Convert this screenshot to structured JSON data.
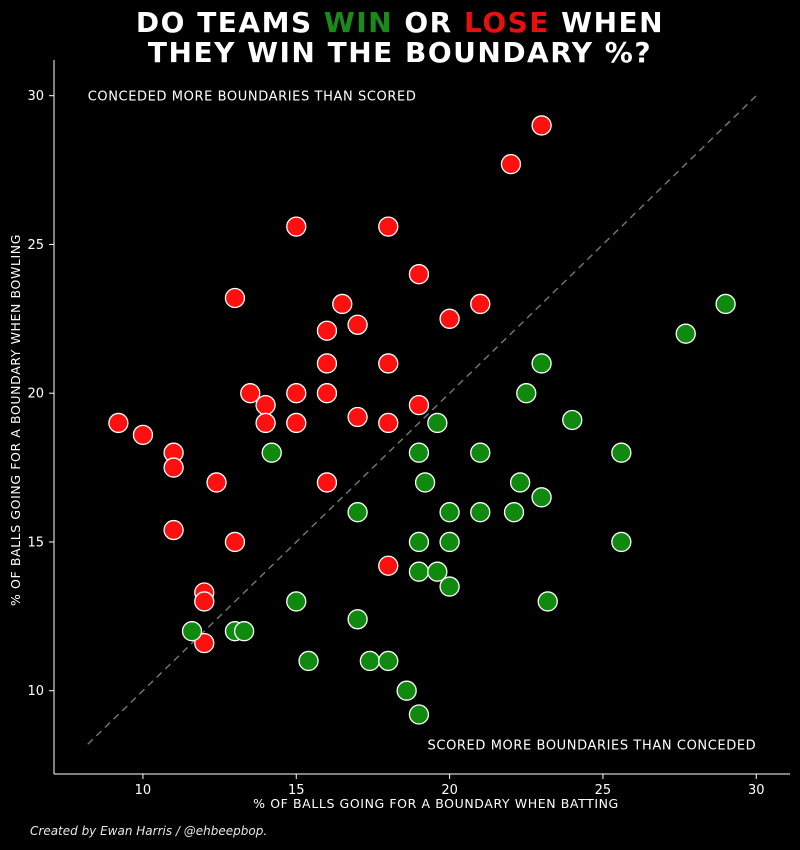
{
  "title": {
    "line1_a": "DO TEAMS ",
    "line1_win": "WIN",
    "line1_b": " OR ",
    "line1_lose": "LOSE",
    "line1_c": " WHEN",
    "line2": "THEY WIN THE BOUNDARY %?"
  },
  "credit": "Created by Ewan Harris / @ehbeepbop.",
  "colors": {
    "win": "#0f8a0f",
    "lose": "#ff1010",
    "background": "#000000",
    "diagonal": "#777777"
  },
  "chart_data": {
    "type": "scatter",
    "xlabel": "% OF BALLS GOING FOR A BOUNDARY WHEN BATTING",
    "ylabel": "% OF BALLS GOING FOR A BOUNDARY WHEN BOWLING",
    "xlim": [
      7.1,
      31.1
    ],
    "ylim": [
      7.2,
      31.2
    ],
    "xticks": [
      10,
      15,
      20,
      25,
      30
    ],
    "yticks": [
      10,
      15,
      20,
      25,
      30
    ],
    "grid": false,
    "annotations": [
      {
        "text": "CONCEDED MORE BOUNDARIES THAN SCORED",
        "x": 8.2,
        "y": 30,
        "align": "start"
      },
      {
        "text": "SCORED MORE BOUNDARIES THAN CONCEDED",
        "x": 30,
        "y": 8.2,
        "align": "end"
      }
    ],
    "reference_line": {
      "from": [
        8.2,
        8.2
      ],
      "to": [
        30,
        30
      ],
      "style": "dashed"
    },
    "series": [
      {
        "key": "lose",
        "points": [
          [
            9.2,
            19
          ],
          [
            10,
            18.6
          ],
          [
            11,
            18
          ],
          [
            11,
            17.5
          ],
          [
            11,
            15.4
          ],
          [
            12,
            13.3
          ],
          [
            12,
            13
          ],
          [
            12,
            11.6
          ],
          [
            12.4,
            17
          ],
          [
            13,
            23.2
          ],
          [
            13,
            15
          ],
          [
            13.5,
            20
          ],
          [
            14,
            19.6
          ],
          [
            14,
            19
          ],
          [
            15,
            25.6
          ],
          [
            15,
            20
          ],
          [
            15,
            19
          ],
          [
            16,
            22.1
          ],
          [
            16,
            21
          ],
          [
            16,
            20
          ],
          [
            16,
            17
          ],
          [
            16.5,
            23
          ],
          [
            17,
            22.3
          ],
          [
            17,
            19.2
          ],
          [
            18,
            25.6
          ],
          [
            18,
            21
          ],
          [
            18,
            19
          ],
          [
            18,
            14.2
          ],
          [
            19,
            24
          ],
          [
            19,
            19.6
          ],
          [
            20,
            22.5
          ],
          [
            21,
            23
          ],
          [
            22,
            27.7
          ],
          [
            23,
            29
          ]
        ]
      },
      {
        "key": "win",
        "points": [
          [
            11.6,
            12
          ],
          [
            13,
            12
          ],
          [
            13.3,
            12
          ],
          [
            14.2,
            18
          ],
          [
            15,
            13
          ],
          [
            15.4,
            11
          ],
          [
            17,
            16
          ],
          [
            17,
            12.4
          ],
          [
            17.4,
            11
          ],
          [
            18,
            11
          ],
          [
            18.6,
            10
          ],
          [
            19,
            18
          ],
          [
            19,
            15
          ],
          [
            19,
            14
          ],
          [
            19,
            9.2
          ],
          [
            19.2,
            17
          ],
          [
            19.6,
            19
          ],
          [
            19.6,
            14
          ],
          [
            20,
            16
          ],
          [
            20,
            15
          ],
          [
            20,
            13.5
          ],
          [
            21,
            18
          ],
          [
            21,
            16
          ],
          [
            22.1,
            16
          ],
          [
            22.3,
            17
          ],
          [
            22.5,
            20
          ],
          [
            23,
            21
          ],
          [
            23,
            16.5
          ],
          [
            23.2,
            13
          ],
          [
            24,
            19.1
          ],
          [
            25.6,
            18
          ],
          [
            25.6,
            15
          ],
          [
            27.7,
            22
          ],
          [
            29,
            23
          ]
        ]
      }
    ]
  }
}
